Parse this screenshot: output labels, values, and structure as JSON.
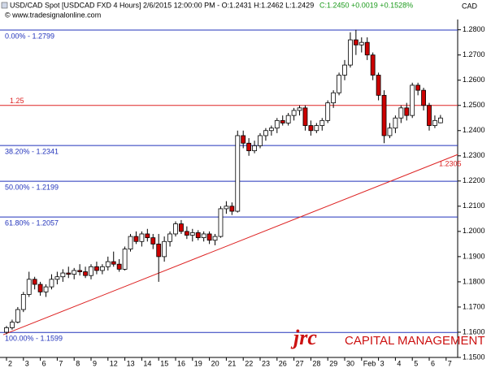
{
  "chart_data": {
    "type": "candlestick",
    "title": "USD/CAD Spot [USDCAD FXD  4 Hours] 2/6/2015 12:00:00 PM - O:1.2431 H:1.2462 L:1.2429",
    "subtitle": "C:1.2450 +0.0019 +0.1528%",
    "source": "© www.tradesignalonline.com",
    "y_axis_label": "CAD",
    "categories": [
      "2",
      "3",
      "6",
      "7",
      "8",
      "9",
      "12",
      "13",
      "14",
      "15",
      "16",
      "19",
      "20",
      "21",
      "22",
      "23",
      "26",
      "27",
      "28",
      "29",
      "30",
      "Feb",
      "3",
      "4",
      "5",
      "6",
      "7"
    ],
    "up_color": "#ffffff",
    "down_color": "#cc0000",
    "ylim": [
      1.15,
      1.2815
    ],
    "yticks": [
      {
        "value": 1.15,
        "label": "1.1500"
      },
      {
        "value": 1.16,
        "label": "1.1600"
      },
      {
        "value": 1.17,
        "label": "1.1700"
      },
      {
        "value": 1.18,
        "label": "1.1800"
      },
      {
        "value": 1.19,
        "label": "1.1900"
      },
      {
        "value": 1.2,
        "label": "1.2000"
      },
      {
        "value": 1.21,
        "label": "1.2100"
      },
      {
        "value": 1.22,
        "label": "1.2200"
      },
      {
        "value": 1.23,
        "label": "1.2300"
      },
      {
        "value": 1.24,
        "label": "1.2400"
      },
      {
        "value": 1.25,
        "label": "1.2500"
      },
      {
        "value": 1.26,
        "label": "1.2600"
      },
      {
        "value": 1.27,
        "label": "1.2700"
      },
      {
        "value": 1.28,
        "label": "1.2800"
      }
    ],
    "fib_levels": [
      {
        "label": "0.00% - 1.2799",
        "value": 1.2799
      },
      {
        "label": "38.20% - 1.2341",
        "value": 1.2341
      },
      {
        "label": "50.00% - 1.2199",
        "value": 1.2199
      },
      {
        "label": "61.80% - 1.2057",
        "value": 1.2057
      },
      {
        "label": "100.00% - 1.1599",
        "value": 1.1599
      }
    ],
    "resistance": 1.25,
    "trendline": {
      "start": 1.159,
      "end": 1.2305
    },
    "ohlc": [
      [
        1.16,
        1.1625,
        1.1592,
        1.1618
      ],
      [
        1.1618,
        1.165,
        1.161,
        1.164
      ],
      [
        1.164,
        1.17,
        1.1635,
        1.169
      ],
      [
        1.169,
        1.176,
        1.168,
        1.175
      ],
      [
        1.175,
        1.184,
        1.174,
        1.181
      ],
      [
        1.181,
        1.182,
        1.177,
        1.179
      ],
      [
        1.179,
        1.18,
        1.1745,
        1.176
      ],
      [
        1.176,
        1.179,
        1.174,
        1.178
      ],
      [
        1.178,
        1.183,
        1.177,
        1.181
      ],
      [
        1.181,
        1.184,
        1.179,
        1.182
      ],
      [
        1.182,
        1.185,
        1.18,
        1.1835
      ],
      [
        1.1835,
        1.186,
        1.1815,
        1.183
      ],
      [
        1.183,
        1.1855,
        1.181,
        1.1845
      ],
      [
        1.1845,
        1.187,
        1.1825,
        1.184
      ],
      [
        1.184,
        1.186,
        1.1815,
        1.1825
      ],
      [
        1.1825,
        1.187,
        1.181,
        1.186
      ],
      [
        1.186,
        1.188,
        1.183,
        1.1845
      ],
      [
        1.1845,
        1.187,
        1.183,
        1.186
      ],
      [
        1.186,
        1.19,
        1.1845,
        1.188
      ],
      [
        1.188,
        1.192,
        1.186,
        1.187
      ],
      [
        1.187,
        1.189,
        1.184,
        1.185
      ],
      [
        1.185,
        1.194,
        1.1845,
        1.193
      ],
      [
        1.193,
        1.199,
        1.192,
        1.198
      ],
      [
        1.198,
        1.2,
        1.195,
        1.196
      ],
      [
        1.196,
        1.2,
        1.194,
        1.199
      ],
      [
        1.199,
        1.201,
        1.196,
        1.1975
      ],
      [
        1.1975,
        1.199,
        1.193,
        1.195
      ],
      [
        1.195,
        1.199,
        1.18,
        1.19
      ],
      [
        1.19,
        1.198,
        1.188,
        1.196
      ],
      [
        1.196,
        1.2,
        1.194,
        1.199
      ],
      [
        1.199,
        1.204,
        1.198,
        1.203
      ],
      [
        1.203,
        1.2045,
        1.199,
        1.2
      ],
      [
        1.2,
        1.202,
        1.197,
        1.1985
      ],
      [
        1.1985,
        1.201,
        1.196,
        1.1995
      ],
      [
        1.1995,
        1.2005,
        1.1965,
        1.1975
      ],
      [
        1.1975,
        1.2,
        1.196,
        1.199
      ],
      [
        1.199,
        1.2,
        1.195,
        1.1965
      ],
      [
        1.1965,
        1.199,
        1.1945,
        1.198
      ],
      [
        1.198,
        1.21,
        1.1975,
        1.209
      ],
      [
        1.209,
        1.212,
        1.207,
        1.21
      ],
      [
        1.21,
        1.2115,
        1.2065,
        1.208
      ],
      [
        1.208,
        1.24,
        1.2075,
        1.238
      ],
      [
        1.238,
        1.24,
        1.233,
        1.235
      ],
      [
        1.235,
        1.237,
        1.23,
        1.232
      ],
      [
        1.232,
        1.236,
        1.231,
        1.234
      ],
      [
        1.234,
        1.239,
        1.233,
        1.238
      ],
      [
        1.238,
        1.241,
        1.236,
        1.24
      ],
      [
        1.24,
        1.242,
        1.238,
        1.241
      ],
      [
        1.241,
        1.245,
        1.239,
        1.244
      ],
      [
        1.244,
        1.246,
        1.242,
        1.243
      ],
      [
        1.243,
        1.247,
        1.242,
        1.246
      ],
      [
        1.246,
        1.249,
        1.244,
        1.248
      ],
      [
        1.248,
        1.25,
        1.246,
        1.249
      ],
      [
        1.249,
        1.25,
        1.24,
        1.242
      ],
      [
        1.242,
        1.244,
        1.238,
        1.24
      ],
      [
        1.24,
        1.243,
        1.239,
        1.242
      ],
      [
        1.242,
        1.245,
        1.24,
        1.244
      ],
      [
        1.244,
        1.252,
        1.243,
        1.251
      ],
      [
        1.251,
        1.256,
        1.249,
        1.255
      ],
      [
        1.255,
        1.263,
        1.254,
        1.262
      ],
      [
        1.262,
        1.268,
        1.26,
        1.266
      ],
      [
        1.266,
        1.279,
        1.265,
        1.276
      ],
      [
        1.276,
        1.28,
        1.27,
        1.274
      ],
      [
        1.274,
        1.277,
        1.271,
        1.275
      ],
      [
        1.275,
        1.277,
        1.268,
        1.27
      ],
      [
        1.27,
        1.271,
        1.26,
        1.262
      ],
      [
        1.262,
        1.263,
        1.252,
        1.254
      ],
      [
        1.254,
        1.256,
        1.235,
        1.238
      ],
      [
        1.238,
        1.243,
        1.237,
        1.241
      ],
      [
        1.241,
        1.246,
        1.239,
        1.245
      ],
      [
        1.245,
        1.25,
        1.243,
        1.249
      ],
      [
        1.249,
        1.251,
        1.244,
        1.246
      ],
      [
        1.246,
        1.259,
        1.245,
        1.258
      ],
      [
        1.258,
        1.259,
        1.254,
        1.256
      ],
      [
        1.256,
        1.257,
        1.248,
        1.25
      ],
      [
        1.25,
        1.251,
        1.24,
        1.242
      ],
      [
        1.242,
        1.246,
        1.241,
        1.244
      ],
      [
        1.2431,
        1.2462,
        1.2429,
        1.245
      ]
    ],
    "branding": {
      "logo": "jrc",
      "name": "CAPITAL MANAGEMENT"
    }
  }
}
